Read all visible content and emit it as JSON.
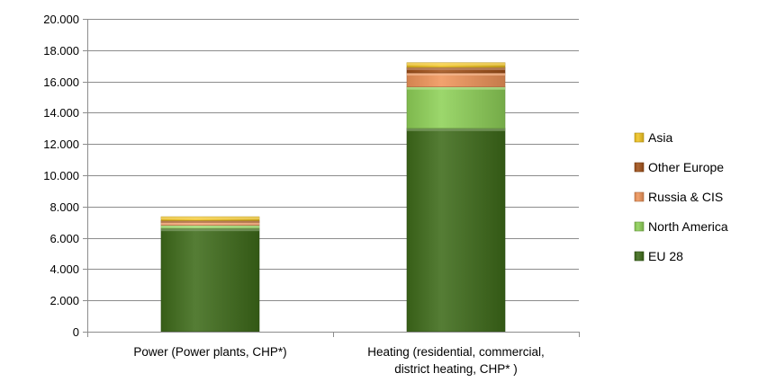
{
  "chart_data": {
    "type": "bar",
    "stacked": true,
    "categories": [
      [
        "Power (Power plants, CHP*)"
      ],
      [
        "Heating (residential, commercial,",
        "district heating, CHP* )"
      ]
    ],
    "series": [
      {
        "name": "EU 28",
        "values": [
          6600,
          13000
        ],
        "color": "#3e6b1a"
      },
      {
        "name": "North America",
        "values": [
          200,
          2650
        ],
        "color": "#8fd158"
      },
      {
        "name": "Russia & CIS",
        "values": [
          200,
          900
        ],
        "color": "#f0955a"
      },
      {
        "name": "Other Europe",
        "values": [
          100,
          350
        ],
        "color": "#a3521a"
      },
      {
        "name": "Asia",
        "values": [
          250,
          300
        ],
        "color": "#f3c521"
      }
    ],
    "ylim": [
      0,
      20000
    ],
    "yticks": [
      0,
      2000,
      4000,
      6000,
      8000,
      10000,
      12000,
      14000,
      16000,
      18000,
      20000
    ],
    "ytick_labels": [
      "0",
      "2.000",
      "4.000",
      "6.000",
      "8.000",
      "10.000",
      "12.000",
      "14.000",
      "16.000",
      "18.000",
      "20.000"
    ],
    "grid": true,
    "legend": "right",
    "title": "",
    "xlabel": "",
    "ylabel": ""
  }
}
